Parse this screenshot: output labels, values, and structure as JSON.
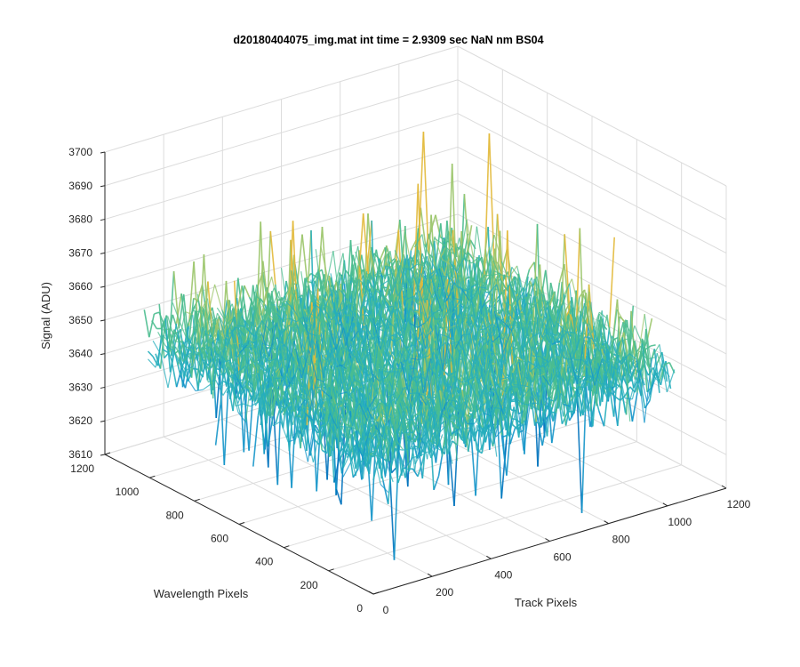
{
  "chart_data": {
    "type": "surface",
    "title": "d20180404075_img.mat int time = 2.9309 sec  NaN nm BS04",
    "xlabel": "Track Pixels",
    "ylabel": "Wavelength Pixels",
    "zlabel": "Signal (ADU)",
    "xlim": [
      0,
      1200
    ],
    "ylim": [
      0,
      1200
    ],
    "zlim": [
      3610,
      3700
    ],
    "x_ticks": [
      "0",
      "200",
      "400",
      "600",
      "800",
      "1000",
      "1200"
    ],
    "y_ticks": [
      "0",
      "200",
      "400",
      "600",
      "800",
      "1000",
      "1200"
    ],
    "z_ticks": [
      "3610",
      "3620",
      "3630",
      "3640",
      "3650",
      "3660",
      "3670",
      "3680",
      "3690",
      "3700"
    ],
    "data_extent": {
      "x": [
        0,
        1024
      ],
      "y": [
        0,
        1024
      ]
    },
    "signal_mean": 3650,
    "signal_range": [
      3612,
      3698
    ],
    "grid": true,
    "colormap": [
      "#0072bd",
      "#1495c9",
      "#26aebc",
      "#4bbd8f",
      "#9bc56a",
      "#e2b93a"
    ]
  }
}
